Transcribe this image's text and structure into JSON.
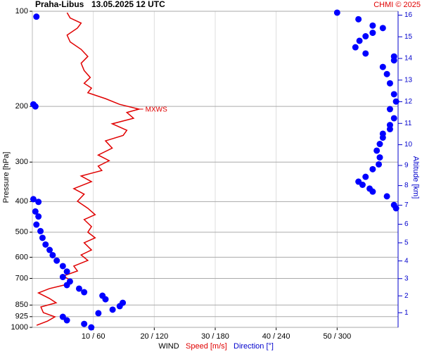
{
  "chart_data": {
    "type": "line",
    "title": "Praha-Libus",
    "subtitle": "13.05.2025 12 UTC",
    "credit": "CHMI © 2025",
    "annotation": "MXWS",
    "ylabel": "Pressure [hPa]",
    "y2label": "Altitude [km]",
    "xlabel": "WIND",
    "log_scale": true,
    "grid": true,
    "ylim": [
      100,
      1000
    ],
    "yticks": [
      100,
      200,
      300,
      400,
      500,
      600,
      700,
      850,
      925,
      1000
    ],
    "xlim": [
      0,
      60
    ],
    "x2lim": [
      0,
      360
    ],
    "xticks": [
      {
        "value": 10,
        "label": "10 / 60"
      },
      {
        "value": 20,
        "label": "20 / 120"
      },
      {
        "value": 30,
        "label": "30 / 180"
      },
      {
        "value": 40,
        "label": "40 / 240"
      },
      {
        "value": 50,
        "label": "50 / 300"
      }
    ],
    "y2ticks": [
      1,
      2,
      3,
      4,
      5,
      6,
      7,
      8,
      9,
      10,
      11,
      12,
      13,
      14,
      15,
      16
    ],
    "series": [
      {
        "name": "Speed [m/s]",
        "color": "#e00000",
        "pressure": [
          985,
          955,
          926,
          898,
          862,
          836,
          810,
          778,
          754,
          731,
          709,
          688,
          663,
          640,
          614,
          590,
          569,
          540,
          521,
          500,
          480,
          456,
          440,
          420,
          399,
          379,
          364,
          346,
          332,
          319,
          309,
          297,
          285,
          271,
          257,
          247,
          238,
          227,
          218,
          209,
          204,
          197,
          189,
          181,
          175,
          169,
          162,
          154,
          146,
          139,
          132,
          125,
          119,
          113,
          109,
          105,
          101
        ],
        "values": [
          0.7,
          2.5,
          3.7,
          1.8,
          1.4,
          3.9,
          2.8,
          1.0,
          2.8,
          5.7,
          6.2,
          5.1,
          7.4,
          6.8,
          9.1,
          8.0,
          9.7,
          8.5,
          10.3,
          9.1,
          9.7,
          8.5,
          10.3,
          9.1,
          7.4,
          8.5,
          6.8,
          9.7,
          8.0,
          11.4,
          10.8,
          12.6,
          10.8,
          13.1,
          12.0,
          14.9,
          15.5,
          13.1,
          16.6,
          15.5,
          17.5,
          14.3,
          12.0,
          9.1,
          9.7,
          8.5,
          9.5,
          8.5,
          8.0,
          9.1,
          8.0,
          6.2,
          5.7,
          7.4,
          8.0,
          6.2,
          5.7
        ]
      },
      {
        "name": "Direction [°]",
        "color": "#0000ff",
        "axis": "x2",
        "pressure": [
          1000,
          975,
          950,
          926,
          902,
          879,
          857,
          836,
          815,
          794,
          774,
          754,
          735,
          716,
          693,
          666,
          640,
          615,
          591,
          569,
          547,
          521,
          496,
          473,
          446,
          430,
          420,
          410,
          401,
          393,
          385,
          372,
          364,
          354,
          346,
          334,
          316,
          305,
          290,
          276,
          263,
          251,
          244,
          236,
          229,
          218,
          204,
          200,
          197,
          193,
          183,
          169,
          158,
          150,
          143,
          139,
          136,
          130,
          124,
          120,
          117,
          113,
          111,
          106,
          104,
          101
        ],
        "values": [
          58,
          51,
          34,
          30,
          65,
          79,
          86,
          89,
          72,
          69,
          51,
          46,
          34,
          37,
          30,
          34,
          30,
          24,
          20,
          17,
          13,
          10,
          8,
          4,
          6,
          3,
          358,
          356,
          6,
          1,
          349,
          335,
          332,
          325,
          321,
          328,
          335,
          341,
          342,
          339,
          342,
          345,
          345,
          352,
          352,
          356,
          352,
          3,
          1,
          358,
          356,
          352,
          349,
          345,
          356,
          356,
          328,
          318,
          322,
          328,
          335,
          345,
          335,
          321,
          4,
          300
        ]
      }
    ]
  }
}
